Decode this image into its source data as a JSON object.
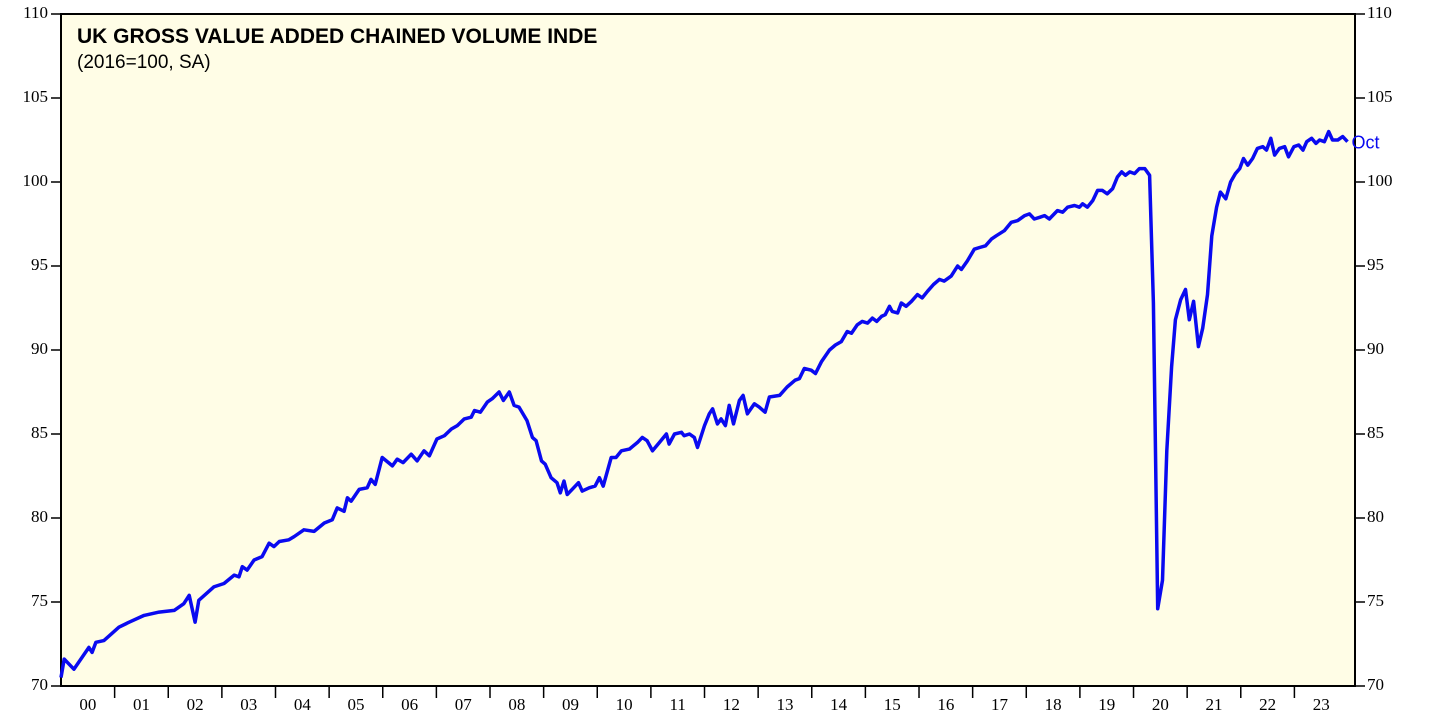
{
  "chart_data": {
    "type": "line",
    "title": "UK GROSS VALUE ADDED CHAINED VOLUME INDE",
    "subtitle": "(2016=100, SA)",
    "annotation": "Oct",
    "color": "#0a0af0",
    "background": "#fffde6",
    "grid": false,
    "x": [
      2000.0,
      2000.06,
      2000.24,
      2000.52,
      2000.58,
      2000.65,
      2000.8,
      2001.08,
      2001.27,
      2001.55,
      2001.83,
      2002.11,
      2002.29,
      2002.39,
      2002.5,
      2002.57,
      2002.85,
      2003.04,
      2003.23,
      2003.32,
      2003.38,
      2003.47,
      2003.6,
      2003.75,
      2003.88,
      2003.97,
      2004.07,
      2004.25,
      2004.35,
      2004.53,
      2004.72,
      2004.91,
      2005.06,
      2005.15,
      2005.28,
      2005.34,
      2005.41,
      2005.56,
      2005.71,
      2005.78,
      2005.86,
      2005.99,
      2006.18,
      2006.27,
      2006.38,
      2006.53,
      2006.64,
      2006.77,
      2006.87,
      2007.01,
      2007.15,
      2007.28,
      2007.39,
      2007.52,
      2007.65,
      2007.71,
      2007.82,
      2007.95,
      2008.04,
      2008.17,
      2008.25,
      2008.36,
      2008.45,
      2008.54,
      2008.69,
      2008.79,
      2008.86,
      2008.96,
      2009.03,
      2009.14,
      2009.25,
      2009.31,
      2009.38,
      2009.44,
      2009.53,
      2009.65,
      2009.72,
      2009.85,
      2009.96,
      2010.04,
      2010.11,
      2010.26,
      2010.35,
      2010.45,
      2010.6,
      2010.75,
      2010.84,
      2010.93,
      2011.03,
      2011.16,
      2011.29,
      2011.34,
      2011.44,
      2011.57,
      2011.62,
      2011.72,
      2011.81,
      2011.87,
      2012.0,
      2012.09,
      2012.15,
      2012.24,
      2012.31,
      2012.39,
      2012.46,
      2012.54,
      2012.65,
      2012.72,
      2012.8,
      2012.93,
      2013.02,
      2013.13,
      2013.21,
      2013.4,
      2013.54,
      2013.69,
      2013.77,
      2013.86,
      2013.99,
      2014.07,
      2014.18,
      2014.33,
      2014.44,
      2014.55,
      2014.66,
      2014.74,
      2014.85,
      2014.94,
      2015.04,
      2015.13,
      2015.21,
      2015.3,
      2015.37,
      2015.45,
      2015.5,
      2015.6,
      2015.67,
      2015.76,
      2015.86,
      2015.97,
      2016.06,
      2016.16,
      2016.27,
      2016.38,
      2016.47,
      2016.6,
      2016.72,
      2016.79,
      2016.9,
      2017.03,
      2017.13,
      2017.24,
      2017.35,
      2017.44,
      2017.59,
      2017.72,
      2017.84,
      2017.97,
      2018.06,
      2018.15,
      2018.25,
      2018.34,
      2018.43,
      2018.58,
      2018.68,
      2018.77,
      2018.9,
      2018.99,
      2019.05,
      2019.14,
      2019.24,
      2019.33,
      2019.42,
      2019.51,
      2019.61,
      2019.7,
      2019.78,
      2019.85,
      2019.93,
      2020.02,
      2020.11,
      2020.21,
      2020.3,
      2020.37,
      2020.45,
      2020.54,
      2020.62,
      2020.71,
      2020.78,
      2020.88,
      2020.97,
      2021.04,
      2021.12,
      2021.21,
      2021.29,
      2021.38,
      2021.46,
      2021.55,
      2021.62,
      2021.72,
      2021.81,
      2021.9,
      2021.98,
      2022.05,
      2022.13,
      2022.22,
      2022.31,
      2022.41,
      2022.48,
      2022.56,
      2022.63,
      2022.72,
      2022.82,
      2022.89,
      2022.99,
      2023.08,
      2023.16,
      2023.23,
      2023.32,
      2023.4,
      2023.47,
      2023.56,
      2023.64,
      2023.71,
      2023.81,
      2023.9,
      2023.99
    ],
    "values": [
      70.5,
      71.6,
      71.0,
      72.3,
      72.0,
      72.6,
      72.7,
      73.5,
      73.8,
      74.2,
      74.4,
      74.5,
      74.9,
      75.4,
      73.8,
      75.1,
      75.9,
      76.1,
      76.6,
      76.5,
      77.1,
      76.9,
      77.5,
      77.7,
      78.5,
      78.3,
      78.6,
      78.7,
      78.9,
      79.3,
      79.2,
      79.7,
      79.9,
      80.6,
      80.4,
      81.2,
      81.0,
      81.7,
      81.8,
      82.3,
      82.0,
      83.6,
      83.1,
      83.5,
      83.3,
      83.8,
      83.4,
      84.0,
      83.7,
      84.7,
      84.9,
      85.3,
      85.5,
      85.9,
      86.0,
      86.4,
      86.3,
      86.9,
      87.1,
      87.5,
      87.0,
      87.5,
      86.7,
      86.6,
      85.8,
      84.8,
      84.6,
      83.4,
      83.2,
      82.4,
      82.1,
      81.5,
      82.2,
      81.4,
      81.7,
      82.1,
      81.6,
      81.8,
      81.9,
      82.4,
      81.9,
      83.6,
      83.6,
      84.0,
      84.1,
      84.5,
      84.8,
      84.6,
      84.0,
      84.5,
      85.0,
      84.4,
      85.0,
      85.1,
      84.9,
      85.0,
      84.8,
      84.2,
      85.5,
      86.2,
      86.5,
      85.6,
      85.9,
      85.5,
      86.7,
      85.6,
      87.0,
      87.3,
      86.2,
      86.8,
      86.6,
      86.3,
      87.2,
      87.3,
      87.8,
      88.2,
      88.3,
      88.9,
      88.8,
      88.6,
      89.3,
      90.0,
      90.3,
      90.5,
      91.1,
      91.0,
      91.5,
      91.7,
      91.6,
      91.9,
      91.7,
      92.0,
      92.1,
      92.6,
      92.3,
      92.2,
      92.8,
      92.6,
      92.9,
      93.3,
      93.1,
      93.5,
      93.9,
      94.2,
      94.1,
      94.4,
      95.0,
      94.8,
      95.3,
      96.0,
      96.1,
      96.2,
      96.6,
      96.8,
      97.1,
      97.6,
      97.7,
      98.0,
      98.1,
      97.8,
      97.9,
      98.0,
      97.8,
      98.3,
      98.2,
      98.5,
      98.6,
      98.5,
      98.7,
      98.5,
      98.9,
      99.5,
      99.5,
      99.3,
      99.6,
      100.3,
      100.6,
      100.4,
      100.6,
      100.5,
      100.8,
      100.8,
      100.4,
      92.8,
      74.6,
      76.3,
      84.0,
      89.0,
      91.8,
      93.0,
      93.6,
      91.8,
      92.9,
      90.2,
      91.3,
      93.3,
      96.8,
      98.5,
      99.4,
      99.0,
      100.0,
      100.5,
      100.8,
      101.4,
      101.0,
      101.4,
      102.0,
      102.1,
      101.9,
      102.6,
      101.6,
      102.0,
      102.1,
      101.5,
      102.1,
      102.2,
      101.9,
      102.4,
      102.6,
      102.3,
      102.5,
      102.4,
      103.0,
      102.5,
      102.5,
      102.7,
      102.4
    ],
    "xlim": [
      2000,
      2024.13
    ],
    "xticks": [
      {
        "value": 2000.5,
        "label": "00"
      },
      {
        "value": 2001.5,
        "label": "01"
      },
      {
        "value": 2002.5,
        "label": "02"
      },
      {
        "value": 2003.5,
        "label": "03"
      },
      {
        "value": 2004.5,
        "label": "04"
      },
      {
        "value": 2005.5,
        "label": "05"
      },
      {
        "value": 2006.5,
        "label": "06"
      },
      {
        "value": 2007.5,
        "label": "07"
      },
      {
        "value": 2008.5,
        "label": "08"
      },
      {
        "value": 2009.5,
        "label": "09"
      },
      {
        "value": 2010.5,
        "label": "10"
      },
      {
        "value": 2011.5,
        "label": "11"
      },
      {
        "value": 2012.5,
        "label": "12"
      },
      {
        "value": 2013.5,
        "label": "13"
      },
      {
        "value": 2014.5,
        "label": "14"
      },
      {
        "value": 2015.5,
        "label": "15"
      },
      {
        "value": 2016.5,
        "label": "16"
      },
      {
        "value": 2017.5,
        "label": "17"
      },
      {
        "value": 2018.5,
        "label": "18"
      },
      {
        "value": 2019.5,
        "label": "19"
      },
      {
        "value": 2020.5,
        "label": "20"
      },
      {
        "value": 2021.5,
        "label": "21"
      },
      {
        "value": 2022.5,
        "label": "22"
      },
      {
        "value": 2023.5,
        "label": "23"
      }
    ],
    "ylim": [
      70,
      110
    ],
    "yticks": [
      70,
      75,
      80,
      85,
      90,
      95,
      100,
      105,
      110
    ]
  }
}
